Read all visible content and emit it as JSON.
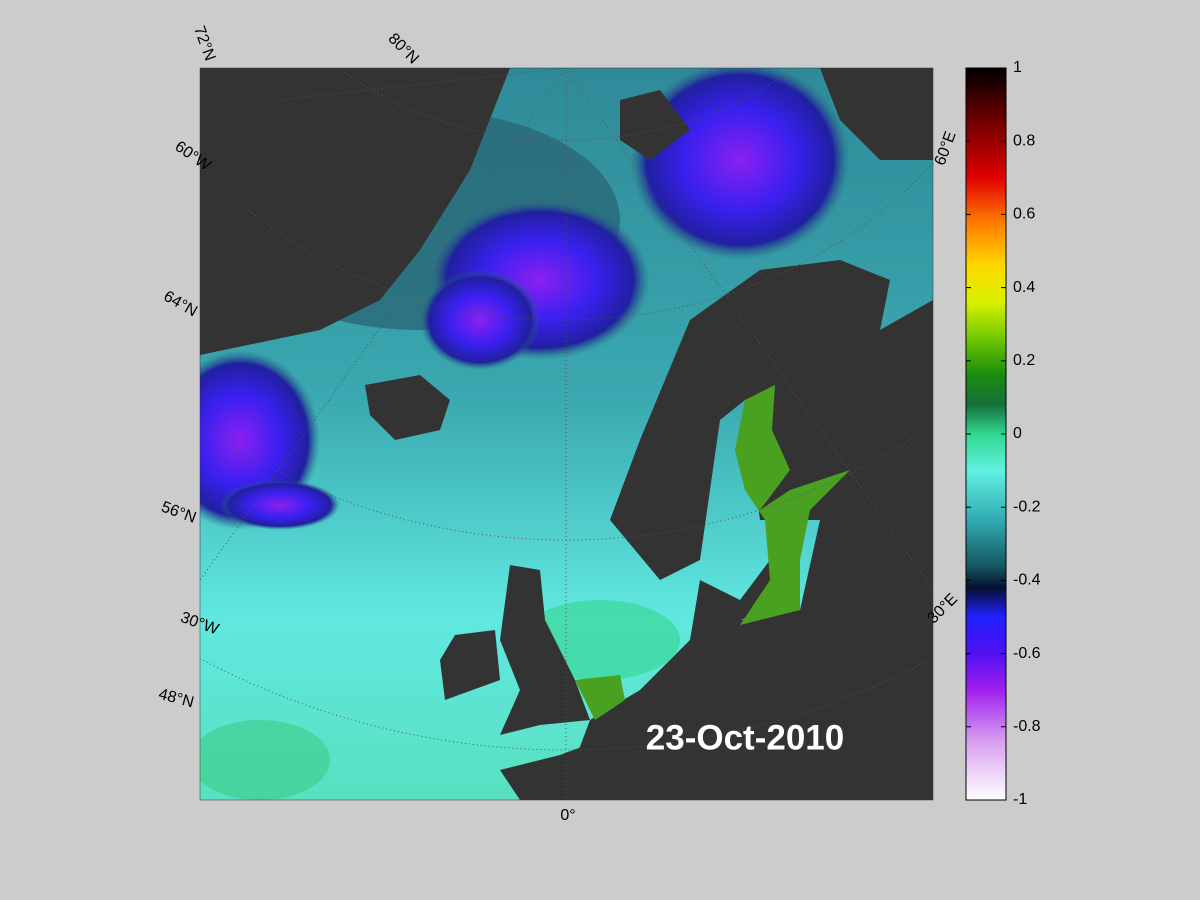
{
  "map": {
    "date": "23-Oct-2010",
    "graticule_labels": [
      "72°N",
      "80°N",
      "60°W",
      "64°N",
      "56°N",
      "30°W",
      "48°N",
      "0°",
      "60°E",
      "30°E"
    ],
    "colorbar": {
      "lim": [
        -1,
        1
      ],
      "ticks": [
        -1,
        -0.8,
        -0.6,
        -0.4,
        -0.2,
        0,
        0.2,
        0.4,
        0.6,
        0.8,
        1
      ]
    }
  }
}
